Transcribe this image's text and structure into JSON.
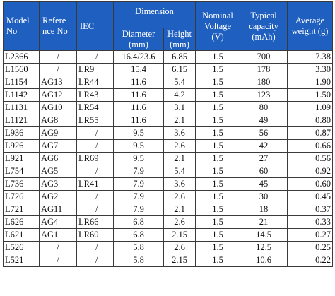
{
  "header": {
    "model_no": "Model No",
    "reference_no": "Refere nce No",
    "iec": "IEC",
    "dimension": "Dimension",
    "diameter": "Diameter (mm)",
    "height": "Height (mm)",
    "nominal_voltage": "Nominal Voltage (V)",
    "typical_capacity": "Typical capacity (mAh)",
    "average_weight": "Average weight (g)"
  },
  "colors": {
    "header_background": "#1f5fbf",
    "header_text": "#ffffff",
    "border": "#3a3a3a"
  },
  "rows": [
    {
      "model": "L2366",
      "ref": "/",
      "iec": "/",
      "diameter": "16.4/23.6",
      "height": "6.85",
      "voltage": "1.5",
      "capacity": "700",
      "weight": "7.38"
    },
    {
      "model": "L1560",
      "ref": "/",
      "iec": "LR9",
      "diameter": "15.4",
      "height": "6.15",
      "voltage": "1.5",
      "capacity": "178",
      "weight": "3.30"
    },
    {
      "model": "L1154",
      "ref": "AG13",
      "iec": "LR44",
      "diameter": "11.6",
      "height": "5.4",
      "voltage": "1.5",
      "capacity": "180",
      "weight": "1.90"
    },
    {
      "model": "L1142",
      "ref": "AG12",
      "iec": "LR43",
      "diameter": "11.6",
      "height": "4.2",
      "voltage": "1.5",
      "capacity": "123",
      "weight": "1.50"
    },
    {
      "model": "L1131",
      "ref": "AG10",
      "iec": "LR54",
      "diameter": "11.6",
      "height": "3.1",
      "voltage": "1.5",
      "capacity": "80",
      "weight": "1.09"
    },
    {
      "model": "L1121",
      "ref": "AG8",
      "iec": "LR55",
      "diameter": "11.6",
      "height": "2.1",
      "voltage": "1.5",
      "capacity": "49",
      "weight": "0.80"
    },
    {
      "model": "L936",
      "ref": "AG9",
      "iec": "/",
      "diameter": "9.5",
      "height": "3.6",
      "voltage": "1.5",
      "capacity": "56",
      "weight": "0.87"
    },
    {
      "model": "L926",
      "ref": "AG7",
      "iec": "/",
      "diameter": "9.5",
      "height": "2.6",
      "voltage": "1.5",
      "capacity": "42",
      "weight": "0.66"
    },
    {
      "model": "L921",
      "ref": "AG6",
      "iec": "LR69",
      "diameter": "9.5",
      "height": "2.1",
      "voltage": "1.5",
      "capacity": "27",
      "weight": "0.56"
    },
    {
      "model": "L754",
      "ref": "AG5",
      "iec": "/",
      "diameter": "7.9",
      "height": "5.4",
      "voltage": "1.5",
      "capacity": "60",
      "weight": "0.92"
    },
    {
      "model": "L736",
      "ref": "AG3",
      "iec": "LR41",
      "diameter": "7.9",
      "height": "3.6",
      "voltage": "1.5",
      "capacity": "45",
      "weight": "0.60"
    },
    {
      "model": "L726",
      "ref": "AG2",
      "iec": "/",
      "diameter": "7.9",
      "height": "2.6",
      "voltage": "1.5",
      "capacity": "30",
      "weight": "0.45"
    },
    {
      "model": "L721",
      "ref": "AG11",
      "iec": "/",
      "diameter": "7.9",
      "height": "2.1",
      "voltage": "1.5",
      "capacity": "18",
      "weight": "0.37"
    },
    {
      "model": "L626",
      "ref": "AG4",
      "iec": "LR66",
      "diameter": "6.8",
      "height": "2.6",
      "voltage": "1.5",
      "capacity": "21",
      "weight": "0.33"
    },
    {
      "model": "L621",
      "ref": "AG1",
      "iec": "LR60",
      "diameter": "6.8",
      "height": "2.15",
      "voltage": "1.5",
      "capacity": "14.5",
      "weight": "0.27"
    },
    {
      "model": "L526",
      "ref": "/",
      "iec": "/",
      "diameter": "5.8",
      "height": "2.6",
      "voltage": "1.5",
      "capacity": "12.5",
      "weight": "0.25"
    },
    {
      "model": "L521",
      "ref": "/",
      "iec": "/",
      "diameter": "5.8",
      "height": "2.15",
      "voltage": "1.5",
      "capacity": "10.6",
      "weight": "0.22"
    }
  ]
}
